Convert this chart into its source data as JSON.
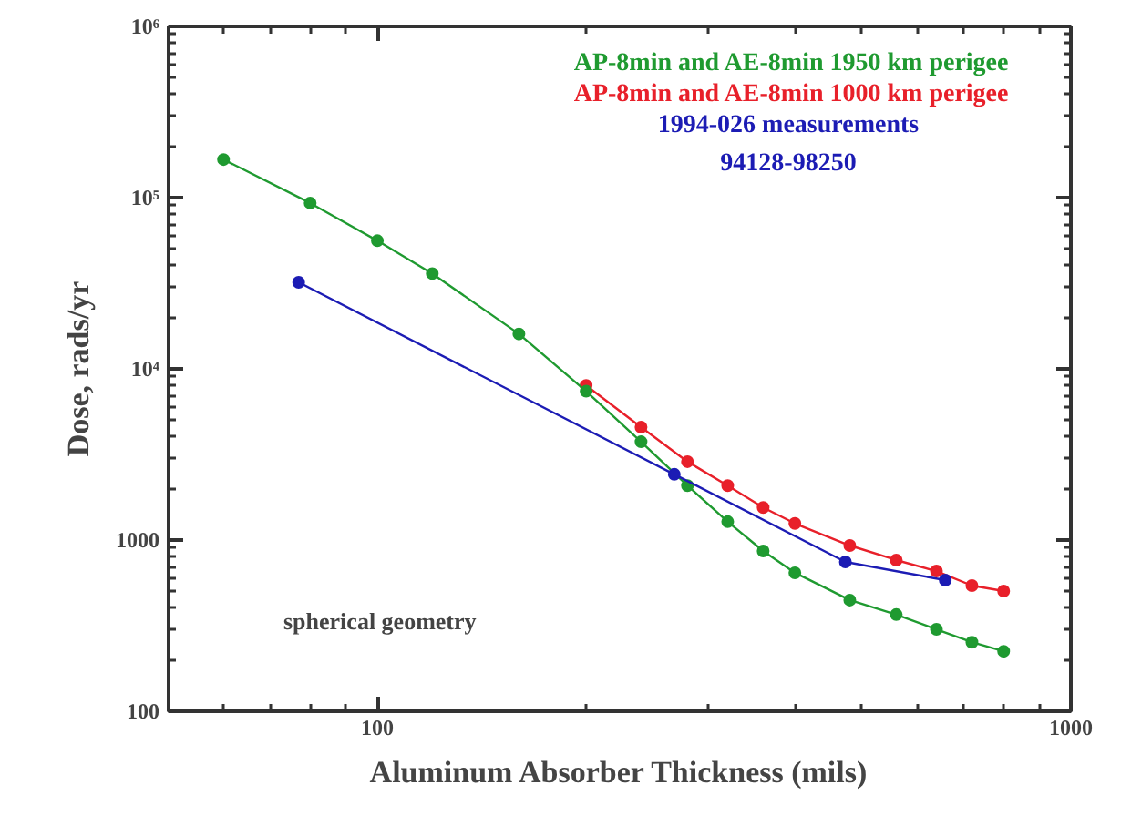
{
  "chart_data": {
    "type": "line",
    "xlabel": "Aluminum Absorber Thickness (mils)",
    "ylabel": "Dose, rads/yr",
    "x": [
      60,
      80,
      100,
      120,
      160,
      200,
      240,
      280,
      320,
      360,
      400,
      480,
      560,
      640,
      720,
      800
    ],
    "series": [
      {
        "name": "AP-8min and AE-8min  1950 km perigee",
        "color": "#1f9a30",
        "values": [
          167000,
          93000,
          56000,
          36000,
          16000,
          7400,
          3750,
          2080,
          1280,
          863,
          644,
          446,
          367,
          301,
          253,
          224
        ]
      },
      {
        "name": "AP-8min and AE-8min  1000 km perigee",
        "color": "#e8202a",
        "values": [
          null,
          null,
          null,
          null,
          null,
          8000,
          4570,
          2870,
          2080,
          1550,
          1250,
          929,
          764,
          659,
          542,
          504
        ]
      },
      {
        "name": "1994-026 measurements\n94128-98250",
        "color": "#1c1cb4",
        "x": [
          77,
          268,
          473,
          659
        ],
        "values": [
          32000,
          2420,
          745,
          583
        ]
      }
    ],
    "xlim": [
      50,
      1000
    ],
    "ylim": [
      100,
      1000000
    ],
    "xticks": [
      100,
      1000
    ],
    "yticks": [
      100,
      1000,
      {
        "value": 10000,
        "label": "10⁴"
      },
      {
        "value": 100000,
        "label": "10⁵"
      },
      {
        "value": 1000000,
        "label": "10⁶"
      }
    ],
    "log": "xy",
    "grid": false,
    "marker": "circle",
    "line_style": "solid",
    "annotations": [
      "spherical geometry"
    ]
  }
}
